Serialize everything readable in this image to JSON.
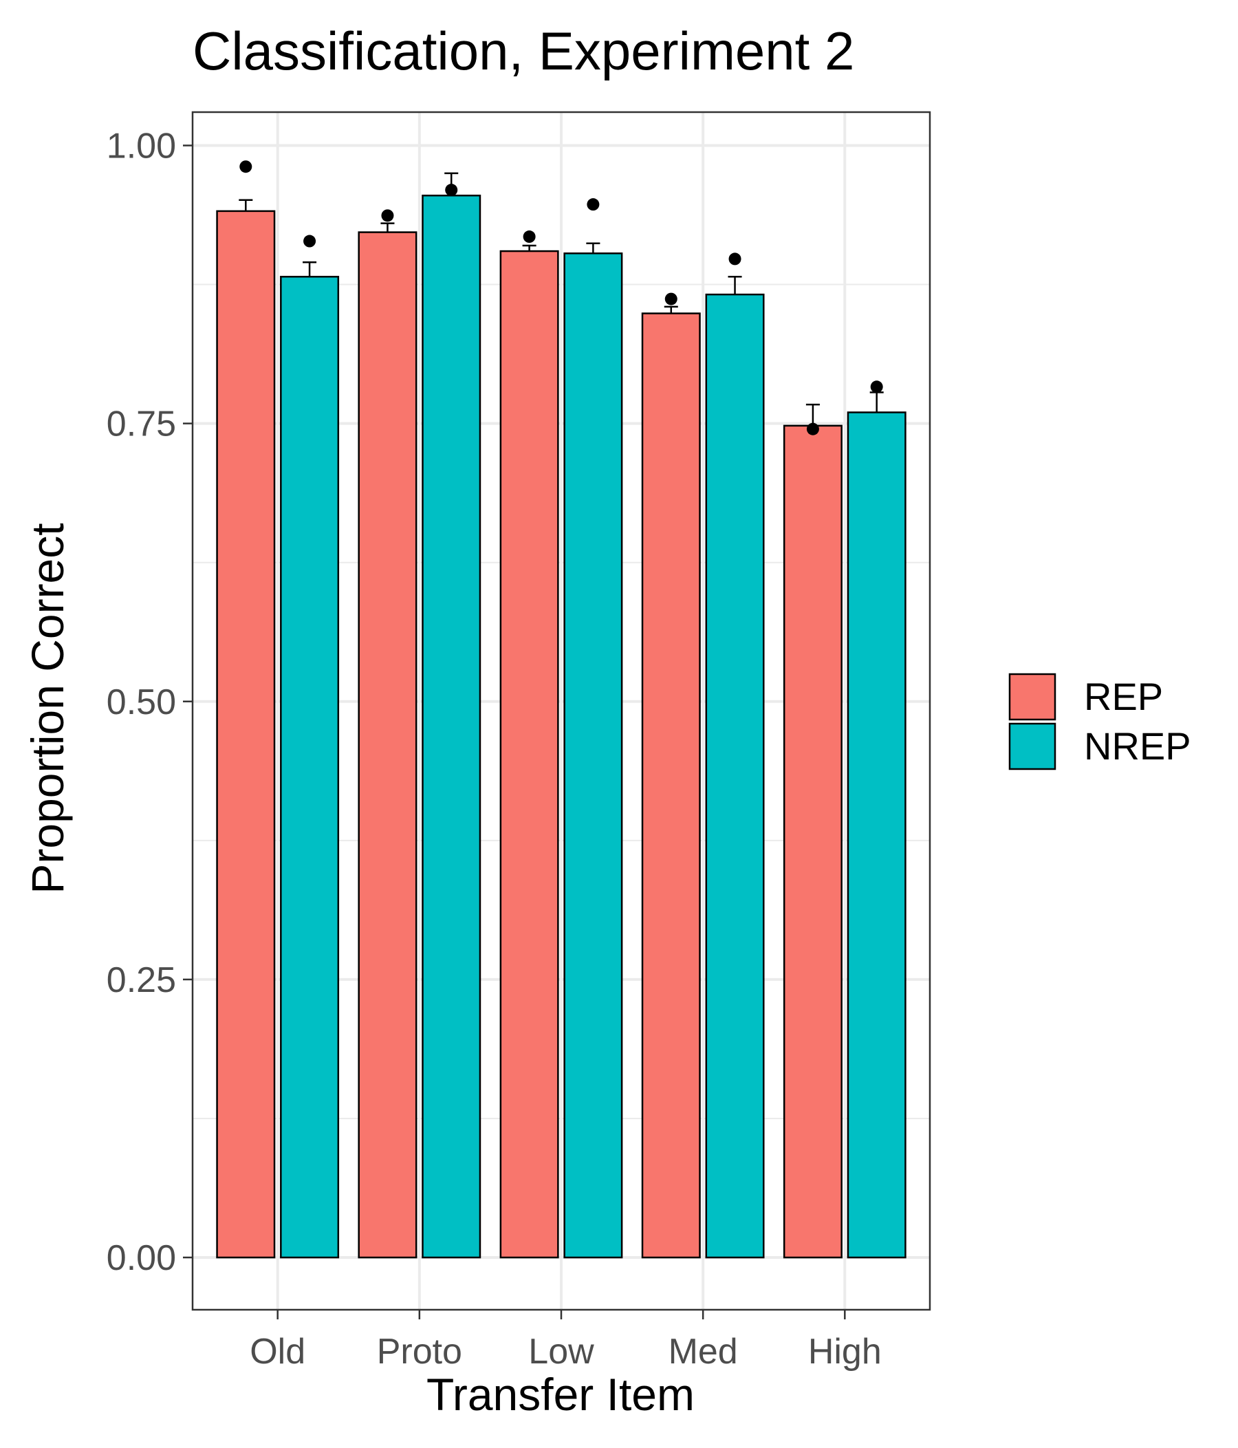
{
  "chart_data": {
    "type": "bar",
    "title": "Classification, Experiment 2",
    "xlabel": "Transfer Item",
    "ylabel": "Proportion Correct",
    "categories": [
      "Old",
      "Proto",
      "Low",
      "Med",
      "High"
    ],
    "ylim": [
      -0.047,
      1.03
    ],
    "yticks": [
      0.0,
      0.25,
      0.5,
      0.75,
      1.0
    ],
    "ytick_labels": [
      "0.00",
      "0.25",
      "0.50",
      "0.75",
      "1.00"
    ],
    "grid": true,
    "legend_position": "right",
    "series": [
      {
        "name": "REP",
        "color": "#F8766D",
        "values": [
          0.941,
          0.922,
          0.905,
          0.849,
          0.748
        ],
        "error_upper": [
          0.951,
          0.93,
          0.91,
          0.855,
          0.767
        ],
        "points": [
          0.981,
          0.937,
          0.918,
          0.862,
          0.745
        ]
      },
      {
        "name": "NREP",
        "color": "#00BFC4",
        "values": [
          0.882,
          0.955,
          0.903,
          0.866,
          0.76
        ],
        "error_upper": [
          0.895,
          0.975,
          0.912,
          0.882,
          0.778
        ],
        "points": [
          0.914,
          0.96,
          0.947,
          0.898,
          0.783
        ]
      }
    ]
  }
}
